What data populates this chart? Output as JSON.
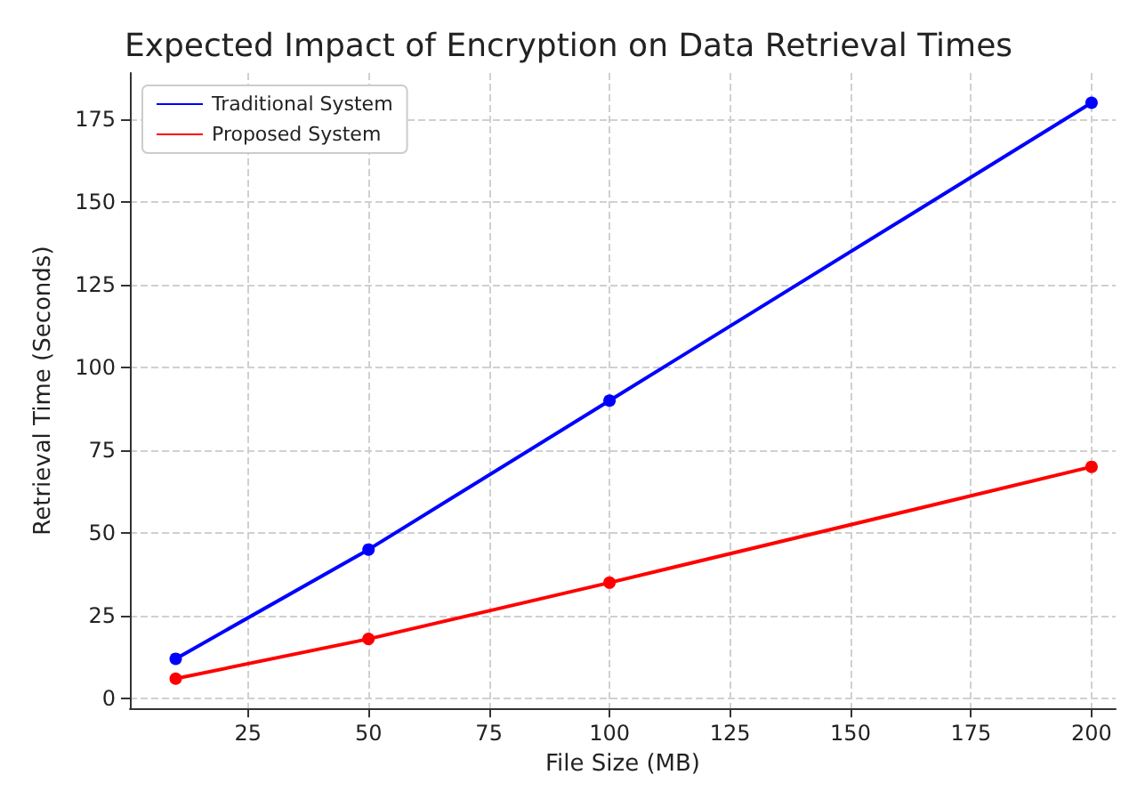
{
  "chart_data": {
    "type": "line",
    "title": "Expected Impact of Encryption on Data Retrieval Times",
    "xlabel": "File Size (MB)",
    "ylabel": "Retrieval Time (Seconds)",
    "x": [
      10,
      50,
      100,
      200
    ],
    "series": [
      {
        "name": "Traditional System",
        "color": "#0000ff",
        "values": [
          12,
          45,
          90,
          180
        ]
      },
      {
        "name": "Proposed System",
        "color": "#ff0000",
        "values": [
          6,
          18,
          35,
          70
        ]
      }
    ],
    "xlim": [
      0.5,
      205
    ],
    "xticks": [
      25,
      50,
      75,
      100,
      125,
      150,
      175,
      200
    ],
    "ylim": [
      -3,
      189
    ],
    "yticks": [
      0,
      25,
      50,
      75,
      100,
      125,
      150,
      175
    ],
    "grid": true,
    "legend": "top left",
    "marker": "circle",
    "line_style": "solid"
  }
}
